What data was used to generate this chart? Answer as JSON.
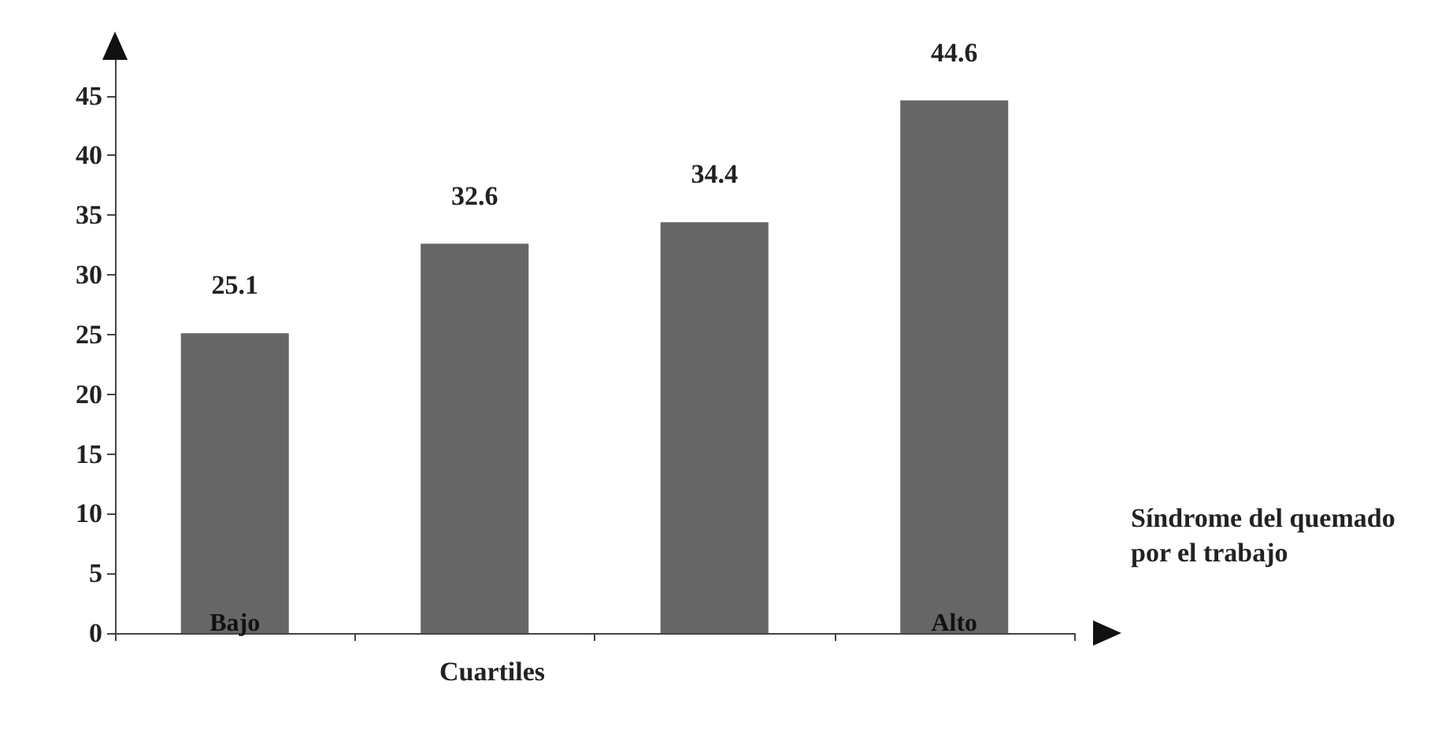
{
  "chart_data": {
    "type": "bar",
    "categories": [
      "Bajo",
      null,
      null,
      "Alto"
    ],
    "values": [
      25.1,
      32.6,
      34.4,
      44.6
    ],
    "color": "#666666",
    "xlabel": "Cuartiles",
    "ylim": [
      0,
      48
    ],
    "yticks": [
      0,
      5,
      10,
      15,
      20,
      25,
      30,
      35,
      40,
      45
    ],
    "data_labels": true,
    "grid": false,
    "annotations": [
      "Síndrome del quemado por el trabajo"
    ]
  }
}
